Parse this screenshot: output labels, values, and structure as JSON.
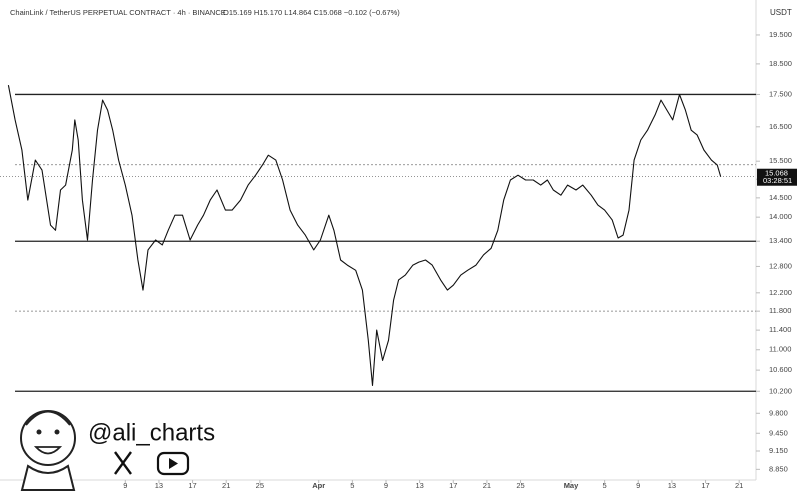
{
  "chart_data": {
    "type": "line",
    "title": "ChainLink / TetherUS PERPETUAL CONTRACT · 4h · BINANCE",
    "ohlc_text": "O15.169 H15.170 L14.864 C15.068 −0.102 (−0.67%)",
    "y_unit": "USDT",
    "log_scale": true,
    "xlim": [
      -6.9,
      83
    ],
    "ylim": [
      8.68,
      20.78
    ],
    "xticks": [
      {
        "value": 8,
        "label": "9"
      },
      {
        "value": 12,
        "label": "13"
      },
      {
        "value": 16,
        "label": "17"
      },
      {
        "value": 20,
        "label": "21"
      },
      {
        "value": 24,
        "label": "25"
      },
      {
        "value": 31,
        "label": "Apr"
      },
      {
        "value": 35,
        "label": "5"
      },
      {
        "value": 39,
        "label": "9"
      },
      {
        "value": 43,
        "label": "13"
      },
      {
        "value": 47,
        "label": "17"
      },
      {
        "value": 51,
        "label": "21"
      },
      {
        "value": 55,
        "label": "25"
      },
      {
        "value": 61,
        "label": "May"
      },
      {
        "value": 65,
        "label": "5"
      },
      {
        "value": 69,
        "label": "9"
      },
      {
        "value": 73,
        "label": "13"
      },
      {
        "value": 77,
        "label": "17"
      },
      {
        "value": 81,
        "label": "21"
      }
    ],
    "yticks": [
      {
        "value": 8.85,
        "label": "8.850"
      },
      {
        "value": 9.15,
        "label": "9.150"
      },
      {
        "value": 9.45,
        "label": "9.450"
      },
      {
        "value": 9.8,
        "label": "9.800"
      },
      {
        "value": 10.2,
        "label": "10.200"
      },
      {
        "value": 10.6,
        "label": "10.600"
      },
      {
        "value": 11,
        "label": "11.000"
      },
      {
        "value": 11.4,
        "label": "11.400"
      },
      {
        "value": 11.8,
        "label": "11.800"
      },
      {
        "value": 12.2,
        "label": "12.200"
      },
      {
        "value": 12.8,
        "label": "12.800"
      },
      {
        "value": 13.4,
        "label": "13.400"
      },
      {
        "value": 14,
        "label": "14.000"
      },
      {
        "value": 14.5,
        "label": "14.500"
      },
      {
        "value": 15,
        "label": "15.000"
      },
      {
        "value": 15.5,
        "label": "15.500"
      },
      {
        "value": 16.5,
        "label": "16.500"
      },
      {
        "value": 17.5,
        "label": "17.500"
      },
      {
        "value": 18.5,
        "label": "18.500"
      },
      {
        "value": 19.5,
        "label": "19.500"
      }
    ],
    "levels": [
      {
        "value": 17.5,
        "style": "solid"
      },
      {
        "value": 15.4,
        "style": "dotted"
      },
      {
        "value": 13.4,
        "style": "solid"
      },
      {
        "value": 11.8,
        "style": "dotted"
      },
      {
        "value": 10.2,
        "style": "solid"
      }
    ],
    "current_price": {
      "value": 15.068,
      "label": "15.068"
    },
    "countdown": "03:28:51",
    "series": [
      {
        "color": "#111111",
        "x": [
          -5.9,
          -5.1,
          -4.3,
          -3.6,
          -2.7,
          -1.9,
          -0.9,
          -0.3,
          0.3,
          0.9,
          1.7,
          2.0,
          2.4,
          2.9,
          3.5,
          4.1,
          4.7,
          5.3,
          5.9,
          6.5,
          7.2,
          8.0,
          8.8,
          9.5,
          10.1,
          10.7,
          11.6,
          12.4,
          13.1,
          13.9,
          14.8,
          15.7,
          16.6,
          17.3,
          18.1,
          18.9,
          19.9,
          20.7,
          21.7,
          22.6,
          23.5,
          24.3,
          25.0,
          25.9,
          26.7,
          27.6,
          28.5,
          29.4,
          30.4,
          31.2,
          32.2,
          32.8,
          33.6,
          34.4,
          35.4,
          36.2,
          36.9,
          37.4,
          37.9,
          38.6,
          39.3,
          39.9,
          40.5,
          41.3,
          42.2,
          42.9,
          43.7,
          44.5,
          45.5,
          46.3,
          47.0,
          47.9,
          48.7,
          49.7,
          50.6,
          51.5,
          52.3,
          53.0,
          53.8,
          54.7,
          55.6,
          56.5,
          57.4,
          58.2,
          58.9,
          59.8,
          60.6,
          61.6,
          62.4,
          63.4,
          64.2,
          65.0,
          65.9,
          66.6,
          67.2,
          67.9,
          68.5,
          69.3,
          70.1,
          71.0,
          71.7,
          72.4,
          73.1,
          73.9,
          74.6,
          75.3,
          76.0,
          76.8,
          77.7,
          78.4,
          78.8
        ],
        "values": [
          17.8,
          16.71,
          15.82,
          14.44,
          15.53,
          15.25,
          13.8,
          13.67,
          14.71,
          14.84,
          15.82,
          16.71,
          16.11,
          14.44,
          13.43,
          14.98,
          16.4,
          17.32,
          17.01,
          16.4,
          15.53,
          14.84,
          14.05,
          12.95,
          12.26,
          13.19,
          13.43,
          13.31,
          13.67,
          14.05,
          14.05,
          13.43,
          13.8,
          14.05,
          14.44,
          14.71,
          14.18,
          14.18,
          14.44,
          14.84,
          15.11,
          15.39,
          15.67,
          15.53,
          14.98,
          14.18,
          13.8,
          13.55,
          13.19,
          13.43,
          14.05,
          13.67,
          12.95,
          12.83,
          12.71,
          12.26,
          11.19,
          10.31,
          11.4,
          10.79,
          11.19,
          12.04,
          12.49,
          12.6,
          12.83,
          12.9,
          12.95,
          12.83,
          12.49,
          12.26,
          12.37,
          12.6,
          12.71,
          12.83,
          13.07,
          13.23,
          13.67,
          14.44,
          14.98,
          15.11,
          14.98,
          14.98,
          14.84,
          14.98,
          14.71,
          14.57,
          14.84,
          14.71,
          14.84,
          14.57,
          14.31,
          14.18,
          13.93,
          13.48,
          13.55,
          14.18,
          15.53,
          16.11,
          16.4,
          16.86,
          17.32,
          17.01,
          16.71,
          17.5,
          17.01,
          16.4,
          16.26,
          15.82,
          15.53,
          15.39,
          15.068
        ]
      }
    ]
  },
  "watermark": {
    "handle": "@ali_charts"
  }
}
